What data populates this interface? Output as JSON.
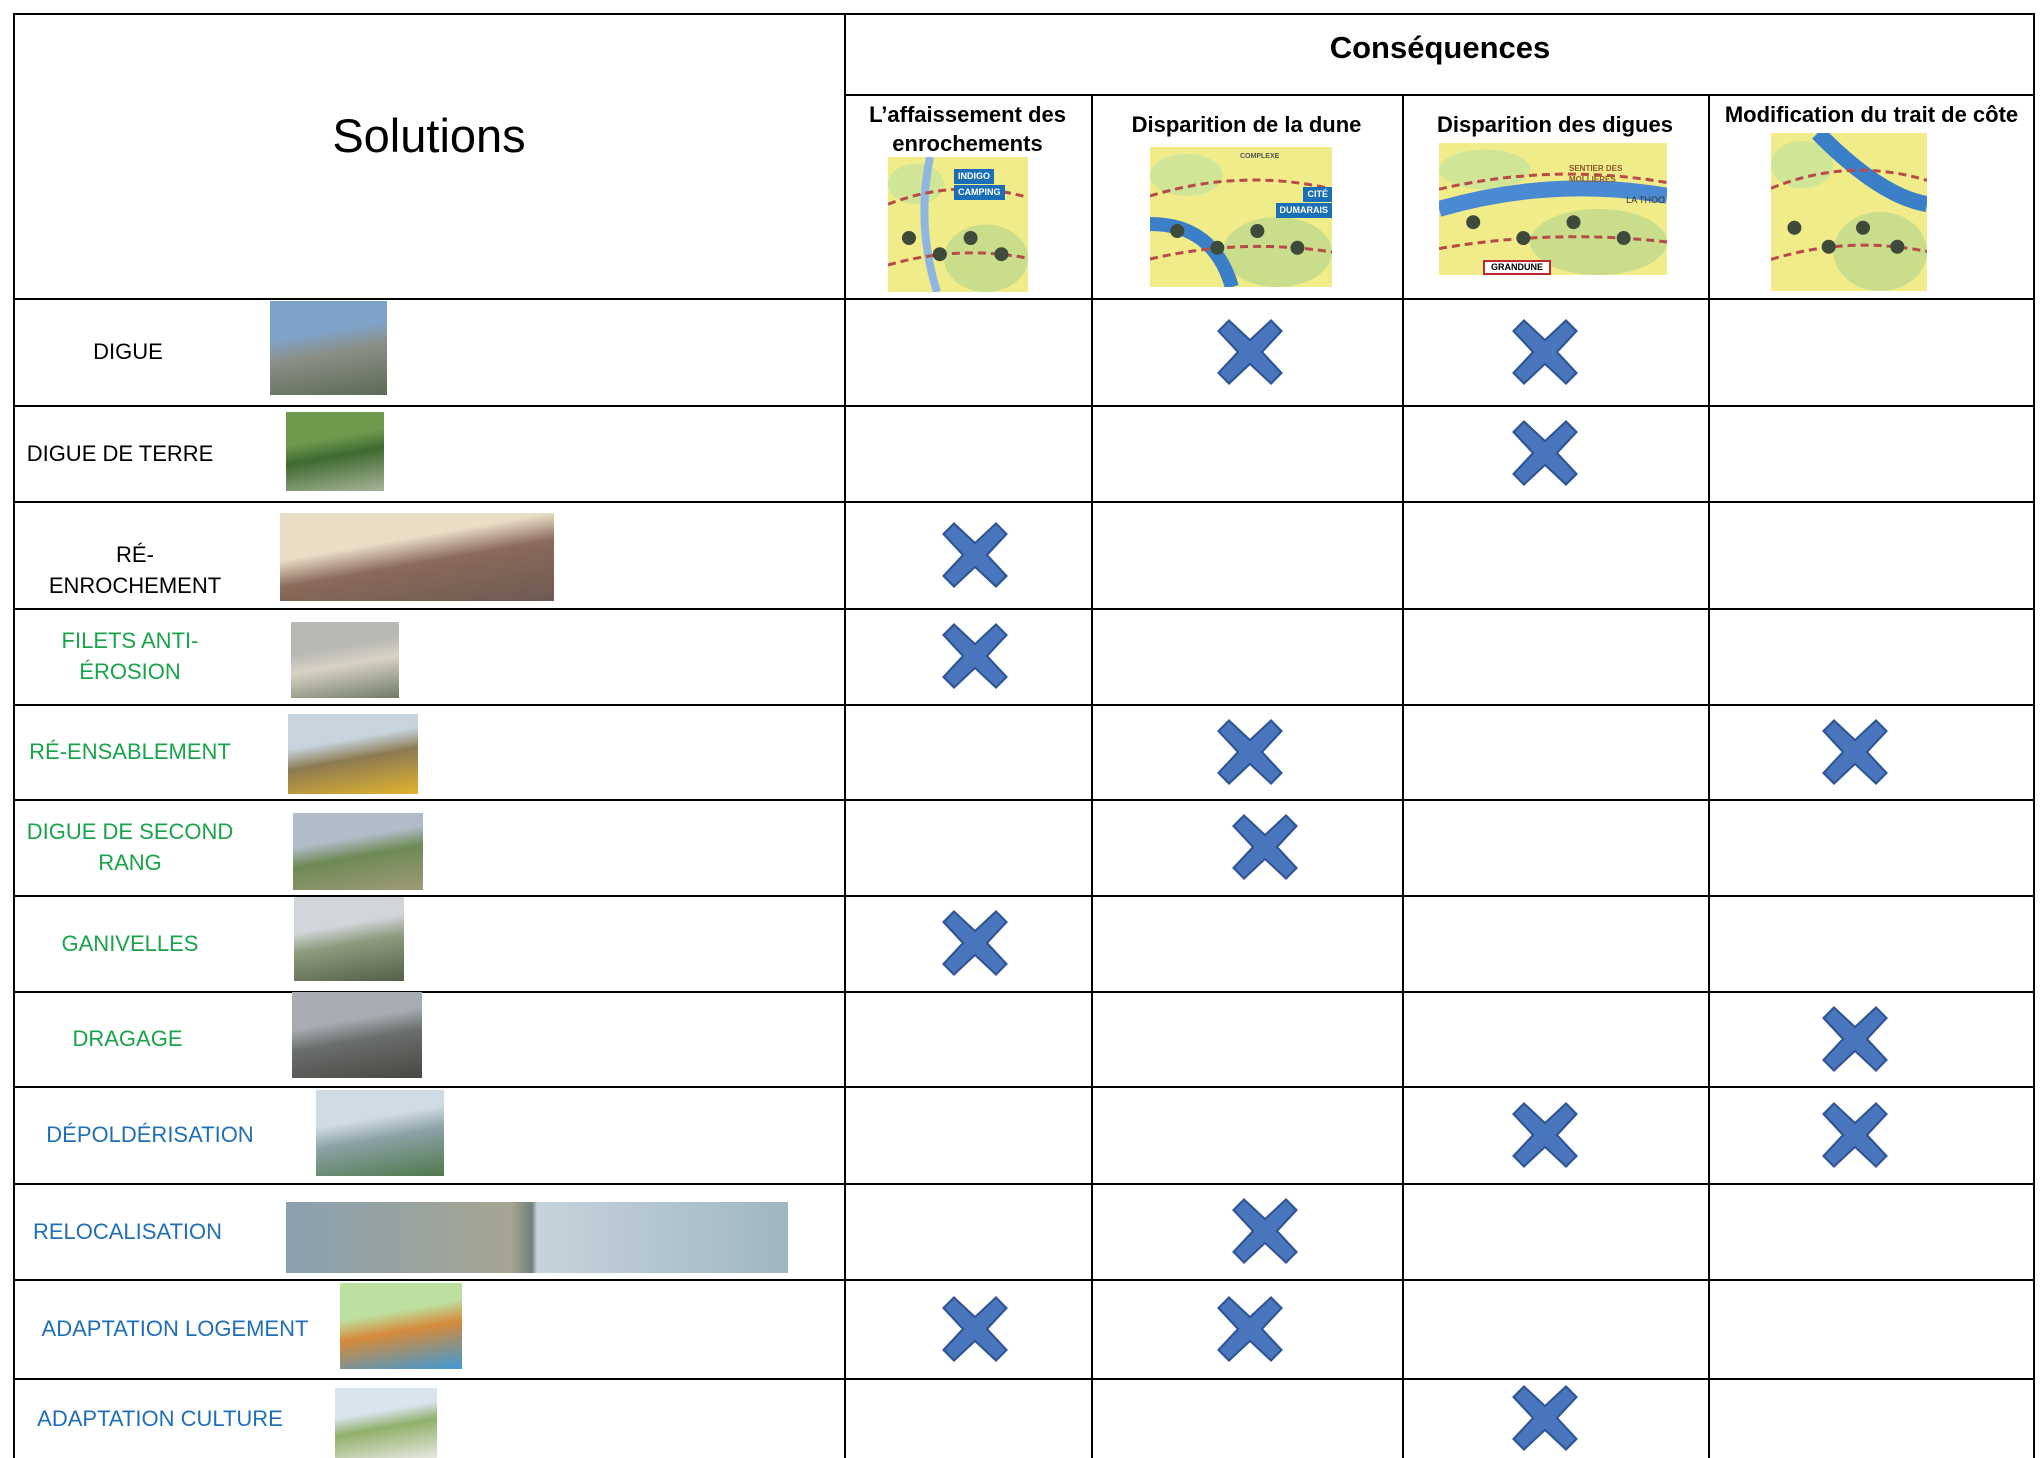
{
  "header": {
    "consequences_title": "Conséquences",
    "solutions_title": "Solutions"
  },
  "columns": [
    {
      "label": "L’affaissement des enrochements",
      "map_labels": [
        "INDIGO",
        "CAMPING"
      ]
    },
    {
      "label": "Disparition de la dune",
      "map_labels": [
        "CITÉ",
        "DUMARAIS",
        "COMPLEXE"
      ]
    },
    {
      "label": "Disparition des digues",
      "map_labels": [
        "SENTIER DES MOLLIÈRES",
        "LA THOO",
        "GRANDUNE"
      ]
    },
    {
      "label": "Modification du trait de côte",
      "map_labels": []
    }
  ],
  "rows": [
    {
      "label_lines": [
        "DIGUE"
      ],
      "color": "#000000",
      "photo": "embankment-photo",
      "marks": [
        false,
        true,
        true,
        false
      ]
    },
    {
      "label_lines": [
        "DIGUE DE TERRE"
      ],
      "color": "#000000",
      "photo": "earth-dike-photo",
      "marks": [
        false,
        false,
        true,
        false
      ]
    },
    {
      "label_lines": [
        "RÉ-ENROCHEMENT"
      ],
      "color": "#000000",
      "photo": "rock-wall-photo",
      "marks": [
        true,
        false,
        false,
        false
      ]
    },
    {
      "label_lines": [
        "FILETS ANTI-",
        "ÉROSION"
      ],
      "color": "#19a34a",
      "photo": "beach-nets-photo",
      "marks": [
        true,
        false,
        false,
        false
      ]
    },
    {
      "label_lines": [
        "RÉ-ENSABLEMENT"
      ],
      "color": "#19a34a",
      "photo": "sand-truck-photo",
      "marks": [
        false,
        true,
        false,
        true
      ]
    },
    {
      "label_lines": [
        "DIGUE DE SECOND",
        "RANG"
      ],
      "color": "#19a34a",
      "photo": "second-dike-photo",
      "marks": [
        false,
        true,
        false,
        false
      ]
    },
    {
      "label_lines": [
        "GANIVELLES"
      ],
      "color": "#19a34a",
      "photo": "sand-fence-photo",
      "marks": [
        true,
        false,
        false,
        false
      ]
    },
    {
      "label_lines": [
        "DRAGAGE"
      ],
      "color": "#19a34a",
      "photo": "dredging-photo",
      "marks": [
        false,
        false,
        false,
        true
      ]
    },
    {
      "label_lines": [
        "DÉPOLDÉRISATION"
      ],
      "color": "#1f6fb8",
      "photo": "polder-aerial-photo",
      "marks": [
        false,
        false,
        true,
        true
      ]
    },
    {
      "label_lines": [
        "RELOCALISATION"
      ],
      "color": "#1f6fb8",
      "photo": "relocation-aerial-photos",
      "marks": [
        false,
        true,
        false,
        false
      ]
    },
    {
      "label_lines": [
        "ADAPTATION LOGEMENT"
      ],
      "color": "#1f6fb8",
      "photo": "house-diagram-photo",
      "marks": [
        true,
        true,
        false,
        false
      ]
    },
    {
      "label_lines": [
        "ADAPTATION CULTURE"
      ],
      "color": "#1f6fb8",
      "photo": "sheep-field-photo",
      "marks": [
        false,
        false,
        true,
        false
      ]
    }
  ],
  "mark_color": "#4a76be",
  "mark_icon": "cross-mark-icon"
}
